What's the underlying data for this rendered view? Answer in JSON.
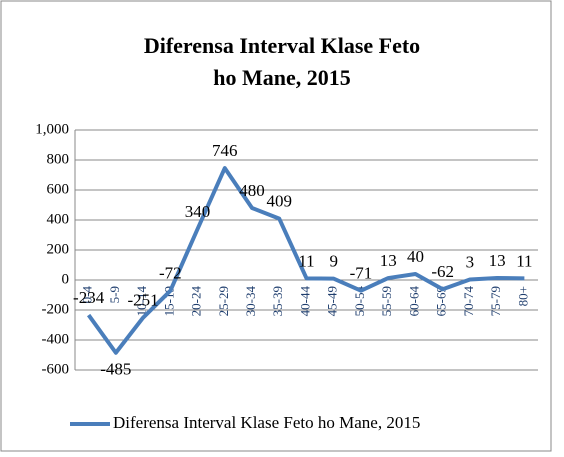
{
  "chart_data": {
    "type": "line",
    "title": "Diferensa Interval Klase Feto ho Mane, 2015",
    "categories": [
      "0-4",
      "5-9",
      "10-14",
      "15-19",
      "20-24",
      "25-29",
      "30-34",
      "35-39",
      "40-44",
      "45-49",
      "50-54",
      "55-59",
      "60-64",
      "65-69",
      "70-74",
      "75-79",
      "80+"
    ],
    "series": [
      {
        "name": "Diferensa Interval Klase Feto ho Mane, 2015",
        "color": "#4a7ebb",
        "values": [
          -234,
          -485,
          -251,
          -72,
          340,
          746,
          480,
          409,
          11,
          9,
          -71,
          13,
          40,
          -62,
          3,
          13,
          11
        ]
      }
    ],
    "ylim": [
      -600,
      1000
    ],
    "yticks": [
      -600,
      -400,
      -200,
      0,
      200,
      400,
      600,
      800,
      {
        "value": 1000,
        "label": "1,000"
      }
    ],
    "grid": true,
    "legend": "bottom"
  }
}
